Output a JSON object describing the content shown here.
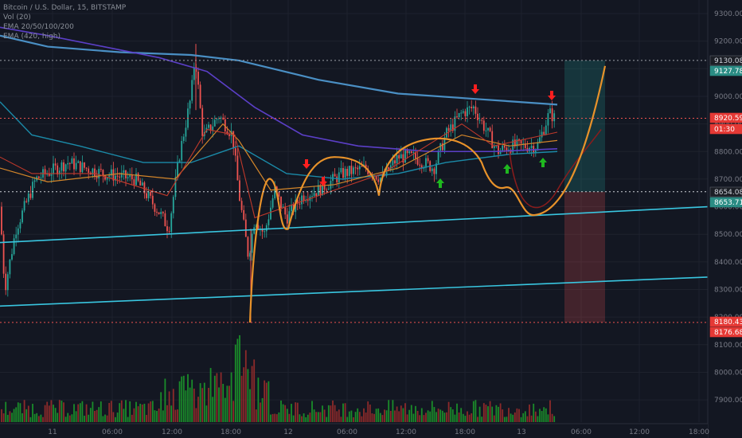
{
  "legend": {
    "symbol": "Bitcoin / U.S. Dollar, 15, BITSTAMP",
    "volume": "Vol (20)",
    "ema_multi": "EMA 20/50/100/200",
    "ema_long": "EMA (420, high)"
  },
  "colors": {
    "background": "#131722",
    "grid": "#1e222d",
    "up": "#26a69a",
    "down": "#ef5350",
    "vol_up": "#1a8c2a",
    "vol_down": "#8c2a2a",
    "ema_long": "#4a8fc4",
    "ema_200": "#5b3fc7",
    "ema_100": "#1b8aa8",
    "ema_50": "#d4862a",
    "ema_20": "#c0392b",
    "trendline": "#39c6e0",
    "projection": "#e8922a",
    "arrow_down": "#ff1f1f",
    "arrow_up": "#1fb81f"
  },
  "chart_data": {
    "type": "candlestick",
    "y_axis": {
      "ticks": [
        "9300.00",
        "9200.00",
        "9100.00",
        "9000.00",
        "8900.00",
        "8800.00",
        "8700.00",
        "8600.00",
        "8500.00",
        "8400.00",
        "8300.00",
        "8200.00",
        "8100.00",
        "8000.00",
        "7900.00"
      ],
      "price_labels": [
        {
          "text": "9130.08",
          "style": "dark"
        },
        {
          "text": "9127.78",
          "style": "teal"
        },
        {
          "text": "8920.59",
          "style": "red"
        },
        {
          "text": "01:30",
          "style": "red"
        },
        {
          "text": "8654.08",
          "style": "dark"
        },
        {
          "text": "8653.71",
          "style": "teal"
        },
        {
          "text": "8180.43",
          "style": "red"
        },
        {
          "text": "8176.68",
          "style": "red"
        }
      ]
    },
    "x_axis": {
      "ticks": [
        "11",
        "06:00",
        "12:00",
        "18:00",
        "12",
        "06:00",
        "12:00",
        "18:00",
        "13",
        "06:00",
        "12:00",
        "18:00"
      ]
    },
    "position": {
      "entry": 8654.08,
      "target": 9130.08,
      "stop": 8180.43
    },
    "key_prices": {
      "current": 8920.59,
      "low": 8176.68
    }
  }
}
